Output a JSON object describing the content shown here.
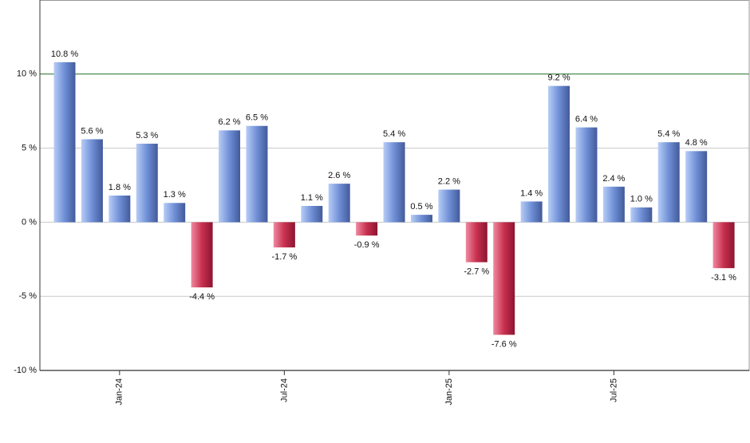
{
  "chart_data": {
    "type": "bar",
    "categories": [
      null,
      null,
      "Jan-24",
      null,
      null,
      null,
      null,
      null,
      "Jul-24",
      null,
      null,
      null,
      null,
      null,
      "Jan-25",
      null,
      null,
      null,
      null,
      null,
      "Jul-25",
      null,
      null,
      null,
      null
    ],
    "values": [
      10.8,
      5.6,
      1.8,
      5.3,
      1.3,
      -4.4,
      6.2,
      6.5,
      -1.7,
      1.1,
      2.6,
      -0.9,
      5.4,
      0.5,
      2.2,
      -2.7,
      -7.6,
      1.4,
      9.2,
      6.4,
      2.4,
      1.0,
      5.4,
      4.8,
      -3.1
    ],
    "value_labels": [
      "10.8 %",
      "5.6 %",
      "1.8 %",
      "5.3 %",
      "1.3 %",
      "-4.4 %",
      "6.2 %",
      "6.5 %",
      "-1.7 %",
      "1.1 %",
      "2.6 %",
      "-0.9 %",
      "5.4 %",
      "0.5 %",
      "2.2 %",
      "-2.7 %",
      "-7.6 %",
      "1.4 %",
      "9.2 %",
      "6.4 %",
      "2.4 %",
      "1.0 %",
      "5.4 %",
      "4.8 %",
      "-3.1 %"
    ],
    "positive_color": "#6f8fd6",
    "negative_color": "#c8304f",
    "ylim": [
      -10,
      15
    ],
    "yticks": [
      {
        "value": -10,
        "label": "-10 %"
      },
      {
        "value": -5,
        "label": "-5 %"
      },
      {
        "value": 0,
        "label": "0 %"
      },
      {
        "value": 5,
        "label": "5 %"
      },
      {
        "value": 10,
        "label": "10 %"
      }
    ],
    "grid": true,
    "reference_line": {
      "value": 10,
      "color": "#2e7d32"
    }
  }
}
